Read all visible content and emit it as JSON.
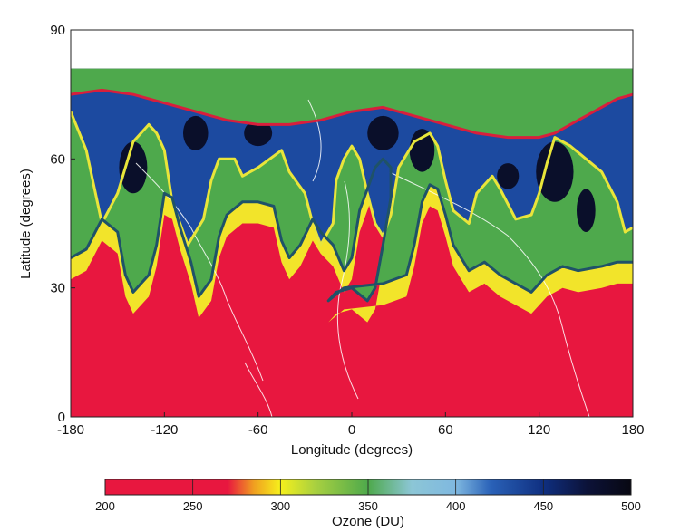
{
  "chart_data": {
    "type": "heatmap",
    "xlabel": "Longitude (degrees)",
    "ylabel": "Latitude (degrees)",
    "xlim": [
      -180,
      180
    ],
    "ylim": [
      0,
      90
    ],
    "xticks": [
      "-180",
      "-120",
      "-60",
      "0",
      "60",
      "120",
      "180"
    ],
    "yticks": [
      "0",
      "30",
      "60",
      "90"
    ],
    "colorbar": {
      "label": "Ozone (DU)",
      "range": [
        200,
        500
      ],
      "ticks": [
        "200",
        "250",
        "300",
        "350",
        "400",
        "450",
        "500"
      ],
      "stops": [
        {
          "value": 200,
          "color": "#e8173f"
        },
        {
          "value": 270,
          "color": "#e8173f"
        },
        {
          "value": 285,
          "color": "#f0a020"
        },
        {
          "value": 300,
          "color": "#f6f01c"
        },
        {
          "value": 320,
          "color": "#a8d040"
        },
        {
          "value": 350,
          "color": "#4ea94c"
        },
        {
          "value": 375,
          "color": "#8cc6d6"
        },
        {
          "value": 400,
          "color": "#7fb8e0"
        },
        {
          "value": 420,
          "color": "#2a62b8"
        },
        {
          "value": 450,
          "color": "#0f2f80"
        },
        {
          "value": 475,
          "color": "#0c1238"
        },
        {
          "value": 500,
          "color": "#080812"
        }
      ]
    },
    "data_top_latitude": 81,
    "contours": [
      {
        "color": "#d81f3c",
        "points": [
          [
            -180,
            75
          ],
          [
            -160,
            76
          ],
          [
            -140,
            75
          ],
          [
            -120,
            73
          ],
          [
            -100,
            71
          ],
          [
            -80,
            69
          ],
          [
            -60,
            68
          ],
          [
            -40,
            68
          ],
          [
            -20,
            69
          ],
          [
            0,
            71
          ],
          [
            20,
            72
          ],
          [
            40,
            70
          ],
          [
            60,
            68
          ],
          [
            80,
            66
          ],
          [
            100,
            65
          ],
          [
            120,
            65
          ],
          [
            130,
            66
          ],
          [
            150,
            70
          ],
          [
            170,
            74
          ],
          [
            180,
            75
          ]
        ]
      },
      {
        "color": "#e9e53a",
        "points": [
          [
            -180,
            71
          ],
          [
            -170,
            62
          ],
          [
            -160,
            45
          ],
          [
            -150,
            52
          ],
          [
            -140,
            64
          ],
          [
            -130,
            68
          ],
          [
            -125,
            66
          ],
          [
            -120,
            62
          ],
          [
            -115,
            50
          ],
          [
            -105,
            40
          ],
          [
            -95,
            46
          ],
          [
            -90,
            55
          ],
          [
            -85,
            60
          ],
          [
            -75,
            60
          ],
          [
            -70,
            56
          ],
          [
            -60,
            58
          ],
          [
            -45,
            62
          ],
          [
            -40,
            57
          ],
          [
            -30,
            52
          ],
          [
            -25,
            45
          ],
          [
            -20,
            40
          ],
          [
            -12,
            45
          ],
          [
            -10,
            55
          ],
          [
            -5,
            60
          ],
          [
            0,
            63
          ],
          [
            5,
            60
          ],
          [
            10,
            52
          ],
          [
            15,
            45
          ],
          [
            20,
            42
          ],
          [
            25,
            47
          ],
          [
            30,
            58
          ],
          [
            40,
            64
          ],
          [
            50,
            66
          ],
          [
            55,
            63
          ],
          [
            60,
            55
          ],
          [
            65,
            48
          ],
          [
            75,
            45
          ],
          [
            80,
            52
          ],
          [
            90,
            56
          ],
          [
            95,
            53
          ],
          [
            105,
            46
          ],
          [
            115,
            47
          ],
          [
            120,
            52
          ],
          [
            125,
            59
          ],
          [
            130,
            65
          ],
          [
            140,
            63
          ],
          [
            150,
            60
          ],
          [
            160,
            57
          ],
          [
            170,
            50
          ],
          [
            175,
            43
          ],
          [
            180,
            44
          ]
        ]
      },
      {
        "color": "#1f5268",
        "points": [
          [
            -180,
            37
          ],
          [
            -170,
            39
          ],
          [
            -160,
            46
          ],
          [
            -150,
            43
          ],
          [
            -145,
            33
          ],
          [
            -140,
            29
          ],
          [
            -130,
            33
          ],
          [
            -125,
            40
          ],
          [
            -120,
            52
          ],
          [
            -115,
            51
          ],
          [
            -110,
            44
          ],
          [
            -103,
            36
          ],
          [
            -98,
            28
          ],
          [
            -90,
            32
          ],
          [
            -85,
            42
          ],
          [
            -80,
            47
          ],
          [
            -70,
            50
          ],
          [
            -60,
            50
          ],
          [
            -50,
            49
          ],
          [
            -45,
            41
          ],
          [
            -40,
            37
          ],
          [
            -33,
            40
          ],
          [
            -25,
            46
          ],
          [
            -20,
            43
          ],
          [
            -12,
            40
          ],
          [
            -5,
            34
          ],
          [
            0,
            37
          ],
          [
            5,
            48
          ],
          [
            10,
            53
          ],
          [
            15,
            58
          ],
          [
            20,
            60
          ],
          [
            25,
            58
          ],
          [
            25,
            51
          ],
          [
            20,
            40
          ],
          [
            15,
            30
          ],
          [
            10,
            27
          ],
          [
            0,
            30
          ],
          [
            -10,
            29
          ],
          [
            -15,
            27
          ],
          [
            -5,
            30
          ],
          [
            20,
            31
          ],
          [
            35,
            33
          ],
          [
            40,
            40
          ],
          [
            45,
            50
          ],
          [
            50,
            54
          ],
          [
            55,
            53
          ],
          [
            60,
            47
          ],
          [
            65,
            40
          ],
          [
            75,
            34
          ],
          [
            85,
            36
          ],
          [
            95,
            33
          ],
          [
            105,
            31
          ],
          [
            115,
            29
          ],
          [
            125,
            33
          ],
          [
            135,
            35
          ],
          [
            145,
            34
          ],
          [
            160,
            35
          ],
          [
            170,
            36
          ],
          [
            180,
            36
          ]
        ]
      }
    ]
  }
}
